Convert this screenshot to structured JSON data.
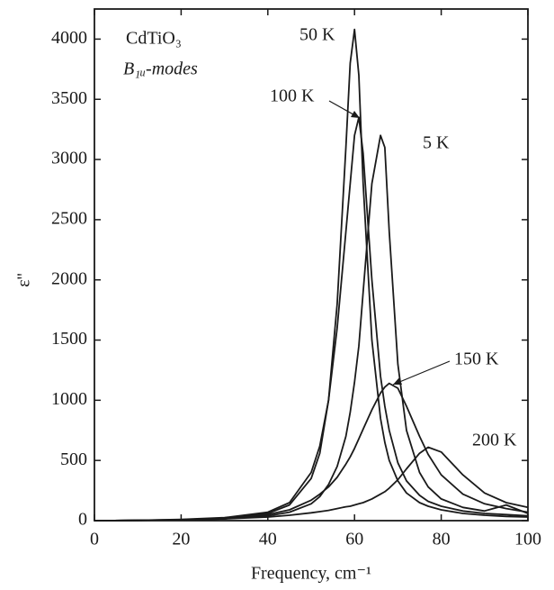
{
  "chart_data": {
    "type": "line",
    "xlabel": "Frequency, cm⁻¹",
    "ylabel": "ε''",
    "annotations": [
      "CdTiO₃",
      "B₁ᵤ-modes"
    ],
    "x": [
      0,
      10,
      20,
      30,
      40,
      45,
      50,
      52,
      54,
      56,
      58,
      59,
      60,
      61,
      62,
      64,
      66,
      67,
      68,
      70,
      72,
      75,
      77,
      80,
      85,
      90,
      95,
      100
    ],
    "series": [
      {
        "name": "50 K",
        "color": "#1a1a1a",
        "values": [
          0,
          2,
          8,
          20,
          60,
          130,
          350,
          560,
          1000,
          1800,
          3100,
          3800,
          4080,
          3700,
          2800,
          1500,
          850,
          650,
          500,
          330,
          230,
          150,
          120,
          90,
          60,
          45,
          35,
          30
        ]
      },
      {
        "name": "100 K",
        "color": "#1a1a1a",
        "values": [
          0,
          2,
          10,
          25,
          70,
          150,
          400,
          620,
          1000,
          1600,
          2400,
          2800,
          3200,
          3350,
          3050,
          2000,
          1200,
          950,
          750,
          480,
          330,
          210,
          160,
          120,
          80,
          60,
          50,
          40
        ]
      },
      {
        "name": "5 K",
        "color": "#1a1a1a",
        "values": [
          0,
          2,
          5,
          15,
          40,
          70,
          140,
          200,
          300,
          450,
          700,
          900,
          1150,
          1450,
          1900,
          2800,
          3200,
          3100,
          2400,
          1300,
          750,
          400,
          280,
          180,
          110,
          80,
          130,
          60
        ]
      },
      {
        "name": "150 K",
        "color": "#1a1a1a",
        "values": [
          0,
          2,
          5,
          15,
          50,
          90,
          170,
          220,
          280,
          360,
          470,
          530,
          600,
          680,
          760,
          920,
          1060,
          1110,
          1140,
          1100,
          950,
          700,
          550,
          380,
          220,
          140,
          100,
          70
        ]
      },
      {
        "name": "200 K",
        "color": "#1a1a1a",
        "values": [
          0,
          2,
          5,
          15,
          30,
          45,
          65,
          75,
          85,
          100,
          115,
          120,
          130,
          140,
          150,
          180,
          220,
          240,
          270,
          340,
          430,
          560,
          610,
          570,
          380,
          230,
          150,
          110
        ]
      }
    ],
    "xlim": [
      0,
      100
    ],
    "xticks": [
      0,
      20,
      40,
      60,
      80,
      100
    ],
    "ylim": [
      0,
      4250
    ],
    "yticks": [
      0,
      500,
      1000,
      1500,
      2000,
      2500,
      3000,
      3500,
      4000
    ]
  }
}
